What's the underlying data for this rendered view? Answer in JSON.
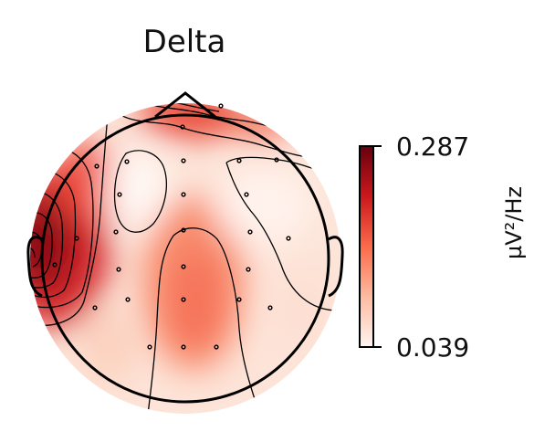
{
  "title": "Delta",
  "colorbar": {
    "max_label": "0.287",
    "min_label": "0.039",
    "unit_label": "µV²/Hz",
    "max_value": 0.287,
    "min_value": 0.039,
    "colormap": "Reds",
    "colors": [
      "#fff5f0",
      "#fcbba1",
      "#fb6a4a",
      "#cb181d",
      "#67000d"
    ]
  },
  "topomap": {
    "band": "Delta",
    "head_outline_color": "#000000",
    "sensor_count": 32
  }
}
